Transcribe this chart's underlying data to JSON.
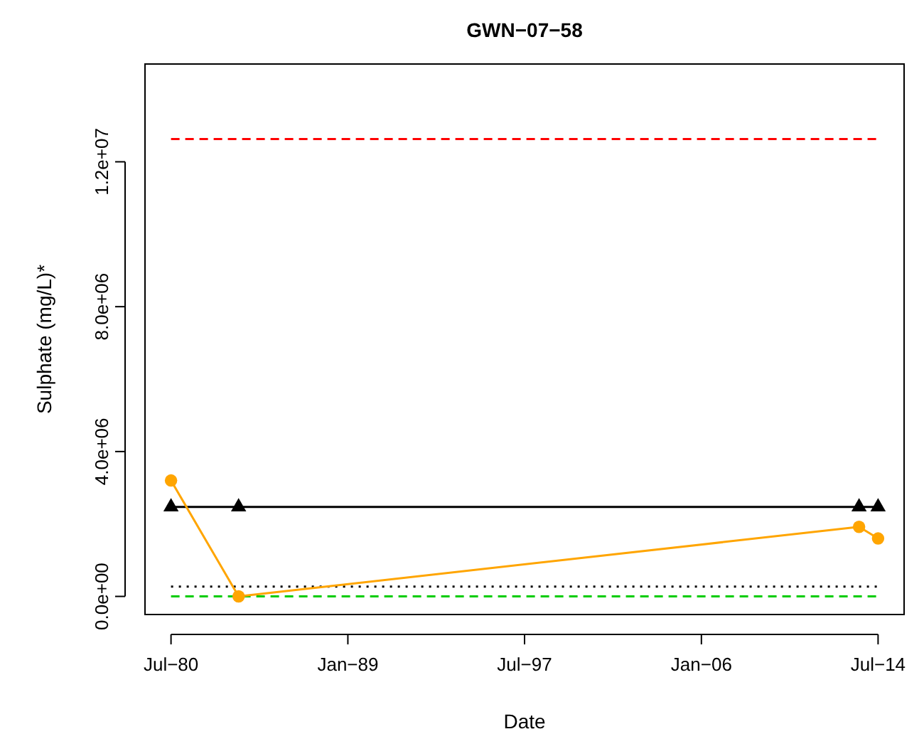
{
  "chart_data": {
    "type": "line",
    "title": "GWN−07−58",
    "xlabel": "Date",
    "ylabel": "Sulphate (mg/L)*",
    "xlim": [
      "1979-04",
      "2015-10"
    ],
    "xticks": [
      {
        "value": "1980-07",
        "label": "Jul−80"
      },
      {
        "value": "1989-01",
        "label": "Jan−89"
      },
      {
        "value": "1997-07",
        "label": "Jul−97"
      },
      {
        "value": "2006-01",
        "label": "Jan−06"
      },
      {
        "value": "2014-07",
        "label": "Jul−14"
      }
    ],
    "ylim": [
      -500000,
      14700000
    ],
    "yticks": [
      {
        "value": 0,
        "label": "0.0e+00"
      },
      {
        "value": 4000000,
        "label": "4.0e+06"
      },
      {
        "value": 8000000,
        "label": "8.0e+06"
      },
      {
        "value": 12000000,
        "label": "1.2e+07"
      }
    ],
    "grid": false,
    "series": [
      {
        "color": "#ff0000",
        "line_style": "dashed",
        "marker": "none",
        "x": [
          "1980-07",
          "2014-07"
        ],
        "values": [
          12630000,
          12630000
        ]
      },
      {
        "color": "#000000",
        "line_style": "dotted",
        "marker": "none",
        "x": [
          "1980-07",
          "2014-07"
        ],
        "values": [
          270000,
          270000
        ]
      },
      {
        "color": "#00cc00",
        "line_style": "dashed",
        "marker": "none",
        "x": [
          "1980-07",
          "2014-07"
        ],
        "values": [
          0,
          0
        ]
      },
      {
        "color": "#000000",
        "line_style": "solid",
        "marker": "triangle",
        "x": [
          "1980-07",
          "1983-10",
          "2013-08",
          "2014-07"
        ],
        "values": [
          2470000,
          2470000,
          2470000,
          2470000
        ]
      },
      {
        "color": "#ffa500",
        "line_style": "solid",
        "marker": "circle",
        "x": [
          "1980-07",
          "1983-10",
          "2013-08",
          "2014-07"
        ],
        "values": [
          3200000,
          0,
          1920000,
          1600000
        ]
      }
    ]
  }
}
